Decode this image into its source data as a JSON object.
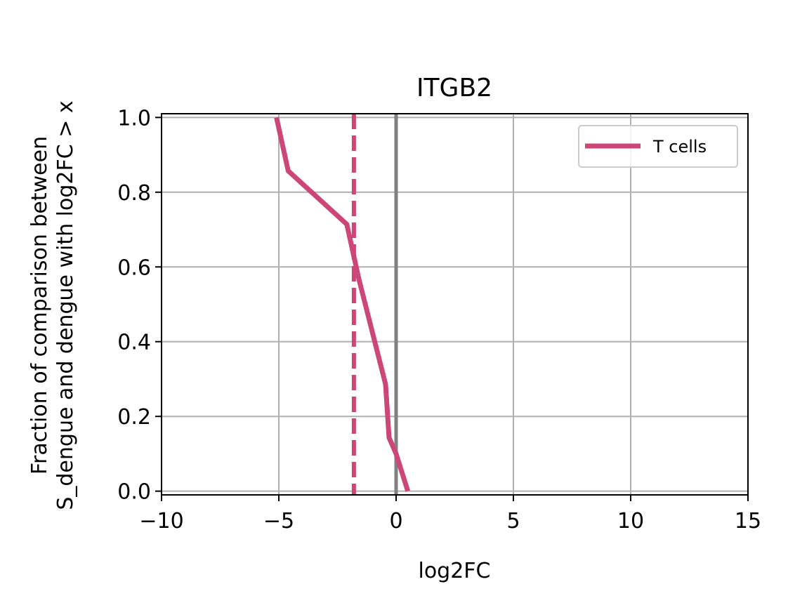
{
  "chart_data": {
    "type": "line",
    "title": "ITGB2",
    "xlabel": "log2FC",
    "ylabel_lines": [
      "Fraction of comparison between",
      "S_dengue and dengue with log2FC > x"
    ],
    "xlim": [
      -10,
      15
    ],
    "ylim": [
      -0.01,
      1.01
    ],
    "xticks": [
      -10,
      -5,
      0,
      5,
      10,
      15
    ],
    "xtick_labels": [
      "−10",
      "−5",
      "0",
      "5",
      "10",
      "15"
    ],
    "yticks": [
      0.0,
      0.2,
      0.4,
      0.6,
      0.8,
      1.0
    ],
    "ytick_labels": [
      "0.0",
      "0.2",
      "0.4",
      "0.6",
      "0.8",
      "1.0"
    ],
    "grid": true,
    "legend_position": "top-right",
    "series": [
      {
        "name": "T cells",
        "color": "#cc4778",
        "x": [
          -5.1,
          -4.6,
          -2.1,
          -1.6,
          -0.45,
          -0.3,
          0.0,
          0.5
        ],
        "y": [
          1.0,
          0.857,
          0.714,
          0.571,
          0.286,
          0.143,
          0.1,
          0.0
        ]
      }
    ],
    "vlines": [
      {
        "x": -1.8,
        "color": "#cc4778",
        "style": "dashed"
      },
      {
        "x": 0,
        "color": "#808080",
        "style": "solid"
      }
    ]
  }
}
